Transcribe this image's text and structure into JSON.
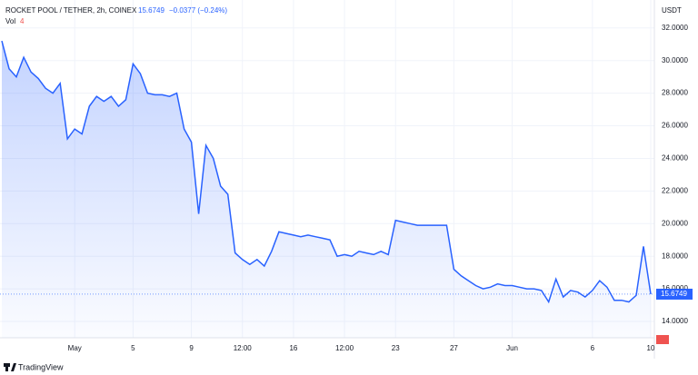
{
  "chart_data": {
    "type": "area",
    "title": "ROCKET POOL / TETHER, 2h, COINEX",
    "last_price": "15.6749",
    "change": "−0.0377 (−0.24%)",
    "volume_label": "Vol",
    "volume_value": "4",
    "unit": "USDT",
    "price_tag": "15.6749",
    "brand": "TradingView",
    "color": "#2962ff",
    "grid": true,
    "categories": [
      null,
      null,
      null,
      null,
      null,
      null,
      null,
      null,
      null,
      null,
      "May",
      null,
      null,
      null,
      null,
      null,
      null,
      null,
      "5",
      null,
      null,
      null,
      null,
      null,
      null,
      null,
      "9",
      null,
      null,
      null,
      null,
      null,
      null,
      "12:00",
      null,
      null,
      null,
      null,
      null,
      null,
      "16",
      null,
      null,
      null,
      null,
      null,
      null,
      "12:00",
      null,
      null,
      null,
      null,
      null,
      null,
      "23",
      null,
      null,
      null,
      null,
      null,
      null,
      null,
      "27",
      null,
      null,
      null,
      null,
      null,
      null,
      null,
      "Jun",
      null,
      null,
      null,
      null,
      null,
      null,
      null,
      null,
      null,
      null,
      "6",
      null,
      null,
      null,
      null,
      null,
      null,
      null,
      "10"
    ],
    "values": [
      31.2,
      29.5,
      29.0,
      30.2,
      29.3,
      28.9,
      28.3,
      28.0,
      28.6,
      25.2,
      25.8,
      25.5,
      27.2,
      27.8,
      27.5,
      27.8,
      27.2,
      27.6,
      29.8,
      29.2,
      28.0,
      27.9,
      27.9,
      27.8,
      28.0,
      25.8,
      25.0,
      20.6,
      24.8,
      24.0,
      22.3,
      21.8,
      18.2,
      17.8,
      17.5,
      17.8,
      17.4,
      18.3,
      19.5,
      19.4,
      19.3,
      19.2,
      19.3,
      19.2,
      19.1,
      19.0,
      18.0,
      18.1,
      18.0,
      18.3,
      18.2,
      18.1,
      18.3,
      18.1,
      20.2,
      20.1,
      20.0,
      19.9,
      19.9,
      19.9,
      19.9,
      19.9,
      17.2,
      16.8,
      16.5,
      16.2,
      16.0,
      16.1,
      16.3,
      16.2,
      16.2,
      16.1,
      16.0,
      16.0,
      15.9,
      15.2,
      16.6,
      15.5,
      15.9,
      15.8,
      15.5,
      15.9,
      16.5,
      16.1,
      15.3,
      15.3,
      15.2,
      15.6,
      18.6,
      15.6749
    ],
    "ylim": [
      13,
      32.6
    ],
    "yticks": [
      {
        "value": 14,
        "label": "14.0000"
      },
      {
        "value": 16,
        "label": "16.0000"
      },
      {
        "value": 18,
        "label": "18.0000"
      },
      {
        "value": 20,
        "label": "20.0000"
      },
      {
        "value": 22,
        "label": "22.0000"
      },
      {
        "value": 24,
        "label": "24.0000"
      },
      {
        "value": 26,
        "label": "26.0000"
      },
      {
        "value": 28,
        "label": "28.0000"
      },
      {
        "value": 30,
        "label": "30.0000"
      },
      {
        "value": 32,
        "label": "32.0000"
      }
    ]
  }
}
